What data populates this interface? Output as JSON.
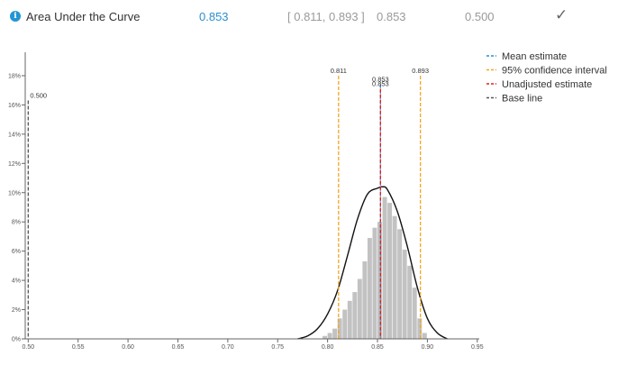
{
  "metric": {
    "name": "Area Under the Curve",
    "value": "0.853",
    "ci": "[ 0.811, 0.893 ]",
    "unadjusted": "0.853",
    "baseline": "0.500",
    "info_icon": "info-icon",
    "status_icon": "checkmark-icon"
  },
  "chart_data": {
    "type": "bar",
    "title": "",
    "xlabel": "",
    "ylabel": "",
    "xlim": [
      0.497,
      0.952
    ],
    "ylim": [
      0,
      0.196
    ],
    "x_ticks": [
      0.5,
      0.55,
      0.6,
      0.65,
      0.7,
      0.75,
      0.8,
      0.85,
      0.9,
      0.95
    ],
    "x_tick_labels": [
      "0.50",
      "0.55",
      "0.60",
      "0.65",
      "0.70",
      "0.75",
      "0.80",
      "0.85",
      "0.90",
      "0.95"
    ],
    "y_ticks": [
      0,
      0.02,
      0.04,
      0.06,
      0.08,
      0.1,
      0.12,
      0.14,
      0.16,
      0.18
    ],
    "y_tick_labels": [
      "0%",
      "2%",
      "4%",
      "6%",
      "8%",
      "10%",
      "12%",
      "14%",
      "16%",
      "18%"
    ],
    "histogram": {
      "bin_width": 0.005,
      "bins": [
        [
          0.795,
          0.002
        ],
        [
          0.8,
          0.004
        ],
        [
          0.805,
          0.007
        ],
        [
          0.81,
          0.014
        ],
        [
          0.815,
          0.02
        ],
        [
          0.82,
          0.026
        ],
        [
          0.825,
          0.032
        ],
        [
          0.83,
          0.041
        ],
        [
          0.835,
          0.053
        ],
        [
          0.84,
          0.069
        ],
        [
          0.845,
          0.076
        ],
        [
          0.85,
          0.08
        ],
        [
          0.855,
          0.097
        ],
        [
          0.86,
          0.093
        ],
        [
          0.865,
          0.084
        ],
        [
          0.87,
          0.075
        ],
        [
          0.875,
          0.061
        ],
        [
          0.88,
          0.05
        ],
        [
          0.885,
          0.035
        ],
        [
          0.89,
          0.014
        ],
        [
          0.895,
          0.004
        ]
      ]
    },
    "density_curve": {
      "x": [
        0.77,
        0.78,
        0.79,
        0.8,
        0.81,
        0.82,
        0.83,
        0.84,
        0.85,
        0.855,
        0.86,
        0.87,
        0.88,
        0.89,
        0.9,
        0.91,
        0.92
      ],
      "y": [
        0.0,
        0.002,
        0.007,
        0.017,
        0.033,
        0.057,
        0.082,
        0.099,
        0.103,
        0.104,
        0.102,
        0.087,
        0.063,
        0.035,
        0.014,
        0.004,
        0.0
      ]
    },
    "reference_lines": [
      {
        "name": "Mean estimate",
        "x": 0.853,
        "label": "0.853",
        "color": "#2a8fd0",
        "top": 0.174
      },
      {
        "name": "95% confidence interval",
        "x": 0.811,
        "label": "0.811",
        "color": "#f5a623",
        "top": 0.18
      },
      {
        "name": "95% confidence interval",
        "x": 0.893,
        "label": "0.893",
        "color": "#f5a623",
        "top": 0.18
      },
      {
        "name": "Unadjusted estimate",
        "x": 0.853,
        "label": "0.853",
        "color": "#e0201b",
        "top": 0.171
      },
      {
        "name": "Base line",
        "x": 0.5,
        "label": "0.500",
        "color": "#555555",
        "top": 0.163
      }
    ],
    "legend": {
      "placement": "top-right",
      "entries": [
        {
          "label": "Mean estimate",
          "color": "#2a8fd0"
        },
        {
          "label": "95% confidence interval",
          "color": "#f5a623"
        },
        {
          "label": "Unadjusted estimate",
          "color": "#e0201b"
        },
        {
          "label": "Base line",
          "color": "#555555"
        }
      ]
    },
    "colors": {
      "bars": "#c2c2c2",
      "curve": "#111111",
      "axis": "#666666"
    }
  }
}
